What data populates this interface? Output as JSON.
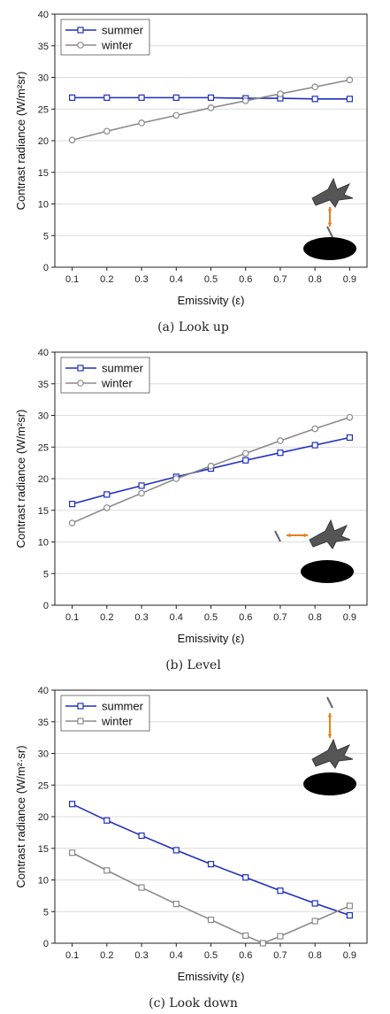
{
  "chart_data": [
    {
      "type": "line",
      "caption": "(a) Look up",
      "xlabel": "Emissivity (ε)",
      "ylabel": "Contrast radiance (W/m²sr)",
      "ylim": [
        0,
        40
      ],
      "yticks": [
        0,
        5,
        10,
        15,
        20,
        25,
        30,
        35,
        40
      ],
      "x": [
        0.1,
        0.2,
        0.3,
        0.4,
        0.5,
        0.6,
        0.7,
        0.8,
        0.9
      ],
      "xtick_labels": [
        "0.1",
        "0.2",
        "0.3",
        "0.4",
        "0.5",
        "0.6",
        "0.7",
        "0.8",
        "0.9"
      ],
      "grid": true,
      "legend": "top-left",
      "inset": "look-up",
      "series": [
        {
          "name": "summer",
          "color": "#1f2fbf",
          "marker": "square",
          "values": [
            26.8,
            26.8,
            26.8,
            26.8,
            26.8,
            26.7,
            26.7,
            26.6,
            26.6
          ]
        },
        {
          "name": "winter",
          "color": "#8a8a8a",
          "marker": "circle",
          "values": [
            20.1,
            21.5,
            22.8,
            24.0,
            25.2,
            26.3,
            27.4,
            28.5,
            29.6
          ]
        }
      ]
    },
    {
      "type": "line",
      "caption": "(b) Level",
      "xlabel": "Emissivity (ε)",
      "ylabel": "Contrast radiance (W/m²sr)",
      "ylim": [
        0,
        40
      ],
      "yticks": [
        0,
        5,
        10,
        15,
        20,
        25,
        30,
        35,
        40
      ],
      "x": [
        0.1,
        0.2,
        0.3,
        0.4,
        0.5,
        0.6,
        0.7,
        0.8,
        0.9
      ],
      "xtick_labels": [
        "0.1",
        "0.2",
        "0.3",
        "0.4",
        "0.5",
        "0.6",
        "0.7",
        "0.8",
        "0.9"
      ],
      "grid": true,
      "legend": "top-left",
      "inset": "level",
      "series": [
        {
          "name": "summer",
          "color": "#1f2fbf",
          "marker": "square",
          "values": [
            16.0,
            17.5,
            18.9,
            20.3,
            21.6,
            22.9,
            24.1,
            25.3,
            26.5
          ]
        },
        {
          "name": "winter",
          "color": "#8a8a8a",
          "marker": "circle",
          "values": [
            13.0,
            15.4,
            17.7,
            20.0,
            22.0,
            24.0,
            26.0,
            27.9,
            29.7
          ]
        }
      ]
    },
    {
      "type": "line",
      "caption": "(c) Look down",
      "xlabel": "Emissivity (ε)",
      "ylabel": "Contrast radiance (W/m²·sr)",
      "ylim": [
        0,
        40
      ],
      "yticks": [
        0,
        5,
        10,
        15,
        20,
        25,
        30,
        35,
        40
      ],
      "x": [
        0.1,
        0.2,
        0.3,
        0.4,
        0.5,
        0.6,
        0.65,
        0.7,
        0.8,
        0.9
      ],
      "xtick_labels": [
        "0.1",
        "0.2",
        "0.3",
        "0.4",
        "0.5",
        "0.6",
        "0.7",
        "0.8",
        "0.9"
      ],
      "grid": true,
      "legend": "top-left",
      "inset": "look-down",
      "series": [
        {
          "name": "summer",
          "color": "#1f2fbf",
          "marker": "square",
          "values": [
            22.0,
            19.4,
            17.0,
            14.7,
            12.5,
            10.4,
            null,
            8.3,
            6.3,
            4.4
          ]
        },
        {
          "name": "winter",
          "color": "#8a8a8a",
          "marker": "square",
          "values": [
            14.3,
            11.5,
            8.8,
            6.2,
            3.7,
            1.2,
            0.0,
            1.1,
            3.5,
            5.9
          ]
        }
      ]
    }
  ]
}
